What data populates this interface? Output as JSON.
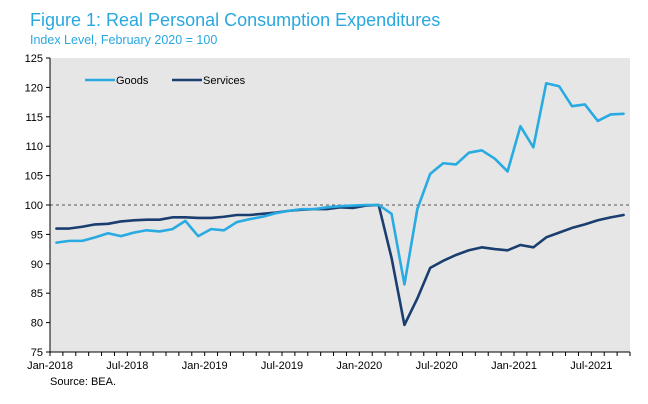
{
  "header": {
    "title": "Figure 1: Real Personal Consumption Expenditures",
    "subtitle": "Index Level,  February 2020 = 100"
  },
  "footer": {
    "source": "Source: BEA."
  },
  "colors": {
    "goods": "#29abe2",
    "services": "#1a3e6f",
    "plot_background": "#e6e6e6",
    "reference_line": "#555555",
    "title": "#29a8e0"
  },
  "chart_data": {
    "type": "line",
    "title": "Figure 1: Real Personal Consumption Expenditures",
    "subtitle": "Index Level,  February 2020 = 100",
    "xlabel": "",
    "ylabel": "",
    "ylim": [
      75,
      125
    ],
    "yticks": [
      75,
      80,
      85,
      90,
      95,
      100,
      105,
      110,
      115,
      120,
      125
    ],
    "x": [
      "2018-01",
      "2018-02",
      "2018-03",
      "2018-04",
      "2018-05",
      "2018-06",
      "2018-07",
      "2018-08",
      "2018-09",
      "2018-10",
      "2018-11",
      "2018-12",
      "2019-01",
      "2019-02",
      "2019-03",
      "2019-04",
      "2019-05",
      "2019-06",
      "2019-07",
      "2019-08",
      "2019-09",
      "2019-10",
      "2019-11",
      "2019-12",
      "2020-01",
      "2020-02",
      "2020-03",
      "2020-04",
      "2020-05",
      "2020-06",
      "2020-07",
      "2020-08",
      "2020-09",
      "2020-10",
      "2020-11",
      "2020-12",
      "2021-01",
      "2021-02",
      "2021-03",
      "2021-04",
      "2021-05",
      "2021-06",
      "2021-07",
      "2021-08",
      "2021-09"
    ],
    "xtick_labels": [
      {
        "month": "2018-01",
        "label": "Jan-2018"
      },
      {
        "month": "2018-07",
        "label": "Jul-2018"
      },
      {
        "month": "2019-01",
        "label": "Jan-2019"
      },
      {
        "month": "2019-07",
        "label": "Jul-2019"
      },
      {
        "month": "2020-01",
        "label": "Jan-2020"
      },
      {
        "month": "2020-07",
        "label": "Jul-2020"
      },
      {
        "month": "2021-01",
        "label": "Jan-2021"
      },
      {
        "month": "2021-07",
        "label": "Jul-2021"
      }
    ],
    "series": [
      {
        "name": "Goods",
        "color": "#29abe2",
        "values": [
          93.6,
          93.9,
          93.9,
          94.5,
          95.2,
          94.7,
          95.3,
          95.7,
          95.5,
          95.9,
          97.3,
          94.7,
          95.9,
          95.7,
          97.1,
          97.6,
          98.0,
          98.6,
          99.0,
          99.3,
          99.3,
          99.6,
          99.8,
          99.9,
          100.0,
          100.0,
          98.5,
          86.5,
          99.3,
          105.3,
          107.1,
          106.9,
          108.9,
          109.3,
          107.9,
          105.7,
          113.4,
          109.8,
          120.7,
          120.2,
          116.8,
          117.1,
          114.3,
          115.4,
          115.5
        ]
      },
      {
        "name": "Services",
        "color": "#1a3e6f",
        "values": [
          96.0,
          96.0,
          96.3,
          96.7,
          96.8,
          97.2,
          97.4,
          97.5,
          97.5,
          97.9,
          97.9,
          97.8,
          97.8,
          98.0,
          98.3,
          98.3,
          98.5,
          98.7,
          99.0,
          99.2,
          99.3,
          99.3,
          99.6,
          99.5,
          99.9,
          100.0,
          91.0,
          79.6,
          84.1,
          89.3,
          90.5,
          91.5,
          92.3,
          92.8,
          92.5,
          92.3,
          93.2,
          92.8,
          94.5,
          95.3,
          96.1,
          96.7,
          97.4,
          97.9,
          98.3
        ]
      }
    ],
    "reference_line": {
      "y": 100,
      "style": "dashed"
    },
    "legend": {
      "placement": "top-left",
      "orientation": "horizontal"
    },
    "grid": false
  }
}
